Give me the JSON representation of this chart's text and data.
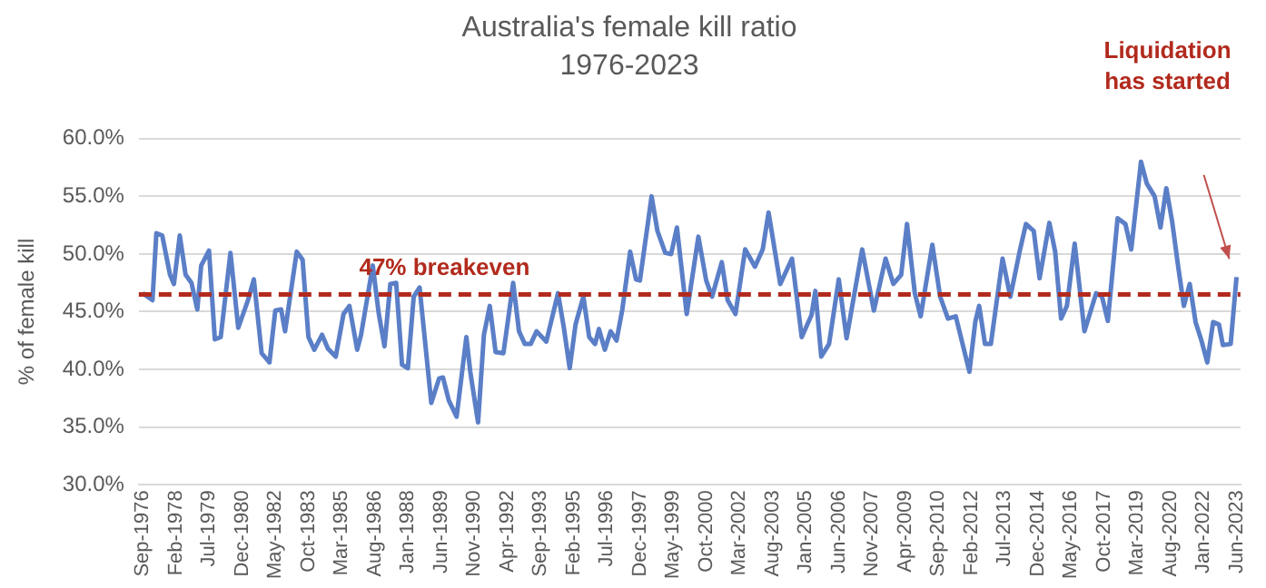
{
  "chart_data": {
    "type": "line",
    "title": "Australia's female kill ratio",
    "subtitle": "1976-2023",
    "ylabel": "% of female kill",
    "x": [
      "1976-09",
      "1977-02",
      "1977-04",
      "1977-07",
      "1977-11",
      "1978-01",
      "1978-04",
      "1978-07",
      "1978-10",
      "1979-01",
      "1979-03",
      "1979-07",
      "1979-10",
      "1980-01",
      "1980-06",
      "1980-10",
      "1981-03",
      "1981-06",
      "1981-10",
      "1982-02",
      "1982-05",
      "1982-08",
      "1982-10",
      "1983-04",
      "1983-07",
      "1983-10",
      "1984-01",
      "1984-05",
      "1984-08",
      "1984-12",
      "1985-04",
      "1985-07",
      "1985-11",
      "1986-01",
      "1986-07",
      "1986-10",
      "1987-01",
      "1987-04",
      "1987-07",
      "1987-10",
      "1988-01",
      "1988-04",
      "1988-07",
      "1989-01",
      "1989-05",
      "1989-07",
      "1989-10",
      "1990-02",
      "1990-07",
      "1990-09",
      "1991-01",
      "1991-04",
      "1991-07",
      "1991-10",
      "1992-02",
      "1992-07",
      "1992-10",
      "1993-01",
      "1993-04",
      "1993-07",
      "1993-12",
      "1994-06",
      "1994-09",
      "1994-12",
      "1995-03",
      "1995-07",
      "1995-10",
      "1996-01",
      "1996-03",
      "1996-06",
      "1996-09",
      "1996-12",
      "1997-03",
      "1997-07",
      "1997-10",
      "1997-12",
      "1998-06",
      "1998-09",
      "1999-01",
      "1999-04",
      "1999-07",
      "1999-12",
      "2000-06",
      "2000-10",
      "2001-01",
      "2001-06",
      "2001-09",
      "2002-01",
      "2002-06",
      "2002-11",
      "2003-03",
      "2003-06",
      "2003-12",
      "2004-06",
      "2004-11",
      "2005-04",
      "2005-06",
      "2005-09",
      "2006-01",
      "2006-06",
      "2006-10",
      "2007-06",
      "2007-12",
      "2008-06",
      "2008-10",
      "2009-02",
      "2009-05",
      "2009-09",
      "2009-12",
      "2010-06",
      "2010-10",
      "2011-02",
      "2011-06",
      "2012-01",
      "2012-04",
      "2012-06",
      "2012-09",
      "2012-12",
      "2013-06",
      "2013-10",
      "2014-03",
      "2014-06",
      "2014-10",
      "2015-01",
      "2015-06",
      "2015-09",
      "2015-12",
      "2016-03",
      "2016-07",
      "2016-12",
      "2017-06",
      "2017-09",
      "2017-12",
      "2018-05",
      "2018-09",
      "2018-12",
      "2019-05",
      "2019-08",
      "2019-12",
      "2020-03",
      "2020-06",
      "2020-09",
      "2020-12",
      "2021-03",
      "2021-06",
      "2021-09",
      "2021-12",
      "2022-03",
      "2022-06",
      "2022-09",
      "2022-11",
      "2023-03",
      "2023-06"
    ],
    "series": [
      {
        "color": "#5b7fc7",
        "values": [
          46.6,
          46.0,
          51.8,
          51.6,
          48.2,
          47.4,
          51.6,
          48.2,
          47.5,
          45.2,
          49.0,
          50.3,
          42.6,
          42.8,
          50.1,
          43.6,
          46.0,
          47.8,
          41.4,
          40.6,
          45.1,
          45.2,
          43.3,
          50.2,
          49.5,
          42.8,
          41.7,
          43.0,
          41.8,
          41.1,
          44.8,
          45.5,
          41.7,
          43.0,
          49.0,
          44.9,
          42.0,
          47.4,
          47.5,
          40.4,
          40.1,
          46.3,
          47.1,
          37.1,
          39.2,
          39.3,
          37.3,
          35.9,
          42.8,
          39.8,
          35.4,
          43.0,
          45.5,
          41.5,
          41.4,
          47.5,
          43.3,
          42.2,
          42.2,
          43.3,
          42.4,
          46.6,
          43.6,
          40.1,
          43.9,
          46.3,
          42.8,
          42.2,
          43.5,
          41.7,
          43.3,
          42.5,
          45.2,
          50.2,
          47.8,
          47.7,
          55.0,
          52.0,
          50.1,
          50.0,
          52.3,
          44.8,
          51.5,
          47.7,
          46.3,
          49.3,
          46.0,
          44.8,
          50.4,
          48.9,
          50.4,
          53.6,
          47.4,
          49.6,
          42.8,
          44.7,
          46.8,
          41.1,
          42.2,
          47.8,
          42.7,
          50.4,
          45.1,
          49.6,
          47.4,
          48.2,
          52.6,
          46.6,
          44.6,
          50.8,
          46.3,
          44.4,
          44.6,
          39.8,
          44.1,
          45.5,
          42.2,
          42.2,
          49.6,
          46.3,
          50.4,
          52.6,
          52.0,
          47.9,
          52.7,
          50.2,
          44.4,
          45.5,
          50.9,
          43.3,
          46.6,
          46.3,
          44.2,
          53.1,
          52.6,
          50.4,
          58.0,
          56.1,
          55.0,
          52.3,
          55.7,
          52.8,
          49.0,
          45.5,
          47.4,
          44.1,
          42.5,
          40.6,
          44.1,
          43.9,
          42.1,
          42.2,
          48.0
        ]
      }
    ],
    "xlim": [
      "1976-07",
      "2023-08"
    ],
    "xticks": [
      {
        "value": "1976-09",
        "label": "Sep-1976"
      },
      {
        "value": "1978-02",
        "label": "Feb-1978"
      },
      {
        "value": "1979-07",
        "label": "Jul-1979"
      },
      {
        "value": "1980-12",
        "label": "Dec-1980"
      },
      {
        "value": "1982-05",
        "label": "May-1982"
      },
      {
        "value": "1983-10",
        "label": "Oct-1983"
      },
      {
        "value": "1985-03",
        "label": "Mar-1985"
      },
      {
        "value": "1986-08",
        "label": "Aug-1986"
      },
      {
        "value": "1988-01",
        "label": "Jan-1988"
      },
      {
        "value": "1989-06",
        "label": "Jun-1989"
      },
      {
        "value": "1990-11",
        "label": "Nov-1990"
      },
      {
        "value": "1992-04",
        "label": "Apr-1992"
      },
      {
        "value": "1993-09",
        "label": "Sep-1993"
      },
      {
        "value": "1995-02",
        "label": "Feb-1995"
      },
      {
        "value": "1996-07",
        "label": "Jul-1996"
      },
      {
        "value": "1997-12",
        "label": "Dec-1997"
      },
      {
        "value": "1999-05",
        "label": "May-1999"
      },
      {
        "value": "2000-10",
        "label": "Oct-2000"
      },
      {
        "value": "2002-03",
        "label": "Mar-2002"
      },
      {
        "value": "2003-08",
        "label": "Aug-2003"
      },
      {
        "value": "2005-01",
        "label": "Jan-2005"
      },
      {
        "value": "2006-06",
        "label": "Jun-2006"
      },
      {
        "value": "2007-11",
        "label": "Nov-2007"
      },
      {
        "value": "2009-04",
        "label": "Apr-2009"
      },
      {
        "value": "2010-09",
        "label": "Sep-2010"
      },
      {
        "value": "2012-02",
        "label": "Feb-2012"
      },
      {
        "value": "2013-07",
        "label": "Jul-2013"
      },
      {
        "value": "2014-12",
        "label": "Dec-2014"
      },
      {
        "value": "2016-05",
        "label": "May-2016"
      },
      {
        "value": "2017-10",
        "label": "Oct-2017"
      },
      {
        "value": "2019-03",
        "label": "Mar-2019"
      },
      {
        "value": "2020-08",
        "label": "Aug-2020"
      },
      {
        "value": "2022-01",
        "label": "Jan-2022"
      },
      {
        "value": "2023-06",
        "label": "Jun-2023"
      }
    ],
    "ylim": [
      30,
      60
    ],
    "yticks": [
      {
        "value": 30,
        "label": "30.0%"
      },
      {
        "value": 35,
        "label": "35.0%"
      },
      {
        "value": 40,
        "label": "40.0%"
      },
      {
        "value": 45,
        "label": "45.0%"
      },
      {
        "value": 50,
        "label": "50.0%"
      },
      {
        "value": 55,
        "label": "55.0%"
      },
      {
        "value": 60,
        "label": "60.0%"
      }
    ],
    "grid": "y",
    "legend": false,
    "marker": "none",
    "line_style": "solid",
    "ref_lines": [
      {
        "axis": "y",
        "value": 46.5,
        "label": "47% breakeven",
        "color": "#b22a1d",
        "line_style": "dashed"
      }
    ],
    "annotations": [
      "Liquidation has started"
    ]
  }
}
